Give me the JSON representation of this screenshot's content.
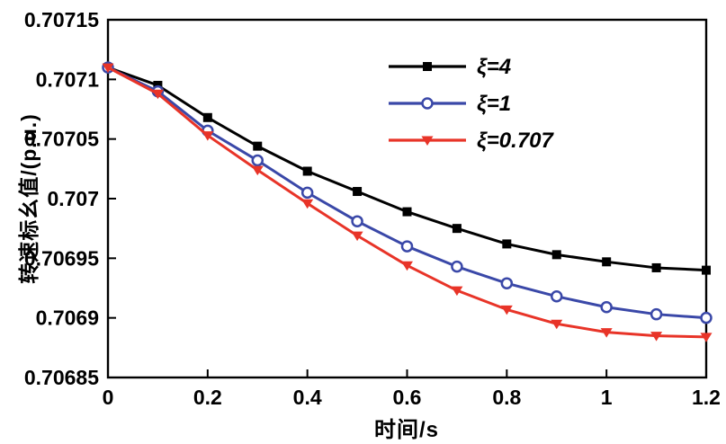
{
  "chart_data": {
    "type": "line",
    "title": "",
    "xlabel": "时间/s",
    "ylabel": "转速标幺值/(p.u.)",
    "xlim": [
      0,
      1.2
    ],
    "ylim": [
      0.70685,
      0.70715
    ],
    "grid": false,
    "legend_position": "upper-right-inside",
    "xticks": [
      0,
      0.2,
      0.4,
      0.6,
      0.8,
      1,
      1.2
    ],
    "xtick_labels": [
      "0",
      "0.2",
      "0.4",
      "0.6",
      "0.8",
      "1",
      "1.2"
    ],
    "yticks": [
      0.70685,
      0.7069,
      0.70695,
      0.707,
      0.70705,
      0.7071,
      0.70715
    ],
    "ytick_labels": [
      "0.70685",
      "0.7069",
      "0.70695",
      "0.707",
      "0.70705",
      "0.7071",
      "0.70715"
    ],
    "x": [
      0,
      0.1,
      0.2,
      0.3,
      0.4,
      0.5,
      0.6,
      0.7,
      0.8,
      0.9,
      1.0,
      1.1,
      1.2
    ],
    "series": [
      {
        "name": "ξ=4",
        "color": "#000000",
        "marker": "square",
        "values": [
          0.70711,
          0.707095,
          0.707068,
          0.707044,
          0.707023,
          0.707006,
          0.706989,
          0.706975,
          0.706962,
          0.706953,
          0.706947,
          0.706942,
          0.70694
        ]
      },
      {
        "name": "ξ=1",
        "color": "#3a48a8",
        "marker": "circle-open",
        "values": [
          0.70711,
          0.70709,
          0.707057,
          0.707032,
          0.707005,
          0.706981,
          0.70696,
          0.706943,
          0.706929,
          0.706918,
          0.706909,
          0.706903,
          0.7069
        ]
      },
      {
        "name": "ξ=0.707",
        "color": "#e83428",
        "marker": "triangle-down",
        "values": [
          0.70711,
          0.707088,
          0.707053,
          0.707024,
          0.706996,
          0.706969,
          0.706944,
          0.706923,
          0.706907,
          0.706895,
          0.706888,
          0.706885,
          0.706884
        ]
      }
    ]
  }
}
